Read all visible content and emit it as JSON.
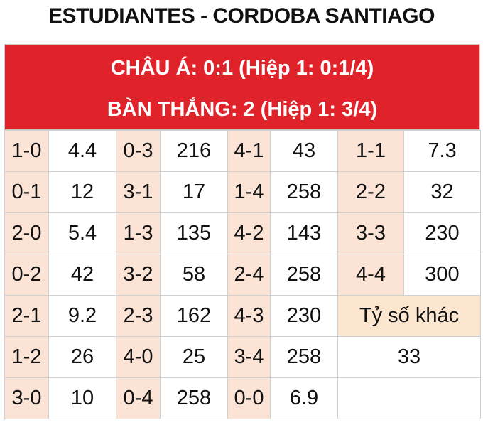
{
  "title": "ESTUDIANTES - CORDOBA SANTIAGO",
  "header": {
    "line1": "CHÂU Á: 0:1 (Hiệp 1: 0:1/4)",
    "line2": "BÀN THẮNG: 2 (Hiệp 1: 3/4)"
  },
  "table": {
    "rows": [
      [
        "1-0",
        4.4,
        "0-3",
        216,
        "4-1",
        43,
        "1-1",
        7.3
      ],
      [
        "0-1",
        12,
        "3-1",
        17,
        "1-4",
        258,
        "2-2",
        32
      ],
      [
        "2-0",
        5.4,
        "1-3",
        135,
        "4-2",
        143,
        "3-3",
        230
      ],
      [
        "0-2",
        42,
        "3-2",
        58,
        "2-4",
        258,
        "4-4",
        300
      ],
      [
        "2-1",
        9.2,
        "2-3",
        162,
        "4-3",
        230
      ],
      [
        "1-2",
        26,
        "4-0",
        25,
        "3-4",
        258
      ],
      [
        "3-0",
        10,
        "0-4",
        258,
        "0-0",
        6.9
      ]
    ],
    "other_label": "Tỷ số khác",
    "other_value": 33
  }
}
